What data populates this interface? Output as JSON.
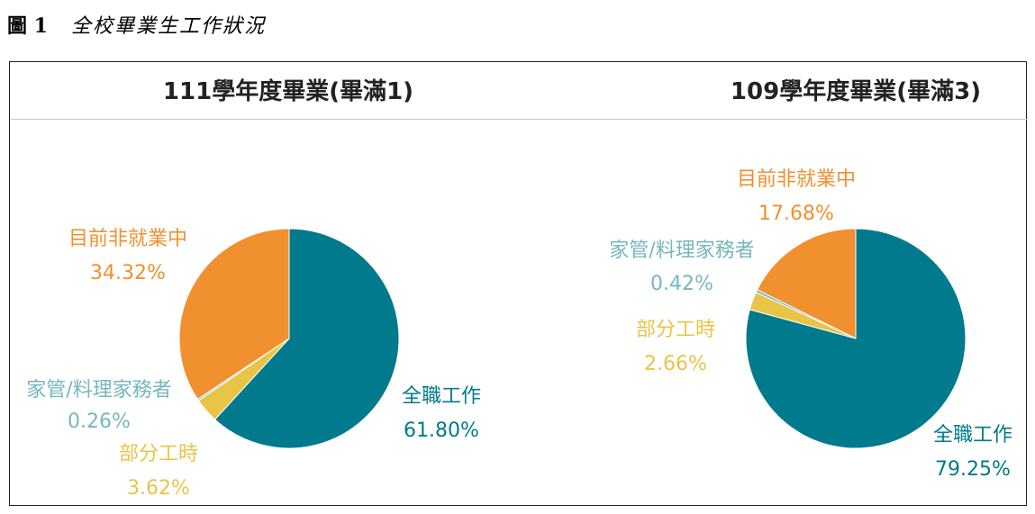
{
  "figure": {
    "number": "圖 1",
    "title": "全校畢業生工作狀況"
  },
  "colors": {
    "fulltime": "#007A8C",
    "parttime": "#E8C547",
    "household": "#76B7BF",
    "unemployed": "#F0902F"
  },
  "chart_data": [
    {
      "type": "pie",
      "title": "111學年度畢業(畢滿1)",
      "slices": [
        {
          "label": "全職工作",
          "value": 61.8,
          "pct_text": "61.80%",
          "color_key": "fulltime"
        },
        {
          "label": "部分工時",
          "value": 3.62,
          "pct_text": "3.62%",
          "color_key": "parttime"
        },
        {
          "label": "家管/料理家務者",
          "value": 0.26,
          "pct_text": "0.26%",
          "color_key": "household"
        },
        {
          "label": "目前非就業中",
          "value": 34.32,
          "pct_text": "34.32%",
          "color_key": "unemployed"
        }
      ]
    },
    {
      "type": "pie",
      "title": "109學年度畢業(畢滿3)",
      "slices": [
        {
          "label": "全職工作",
          "value": 79.25,
          "pct_text": "79.25%",
          "color_key": "fulltime"
        },
        {
          "label": "部分工時",
          "value": 2.66,
          "pct_text": "2.66%",
          "color_key": "parttime"
        },
        {
          "label": "家管/料理家務者",
          "value": 0.42,
          "pct_text": "0.42%",
          "color_key": "household"
        },
        {
          "label": "目前非就業中",
          "value": 17.68,
          "pct_text": "17.68%",
          "color_key": "unemployed"
        }
      ]
    }
  ]
}
